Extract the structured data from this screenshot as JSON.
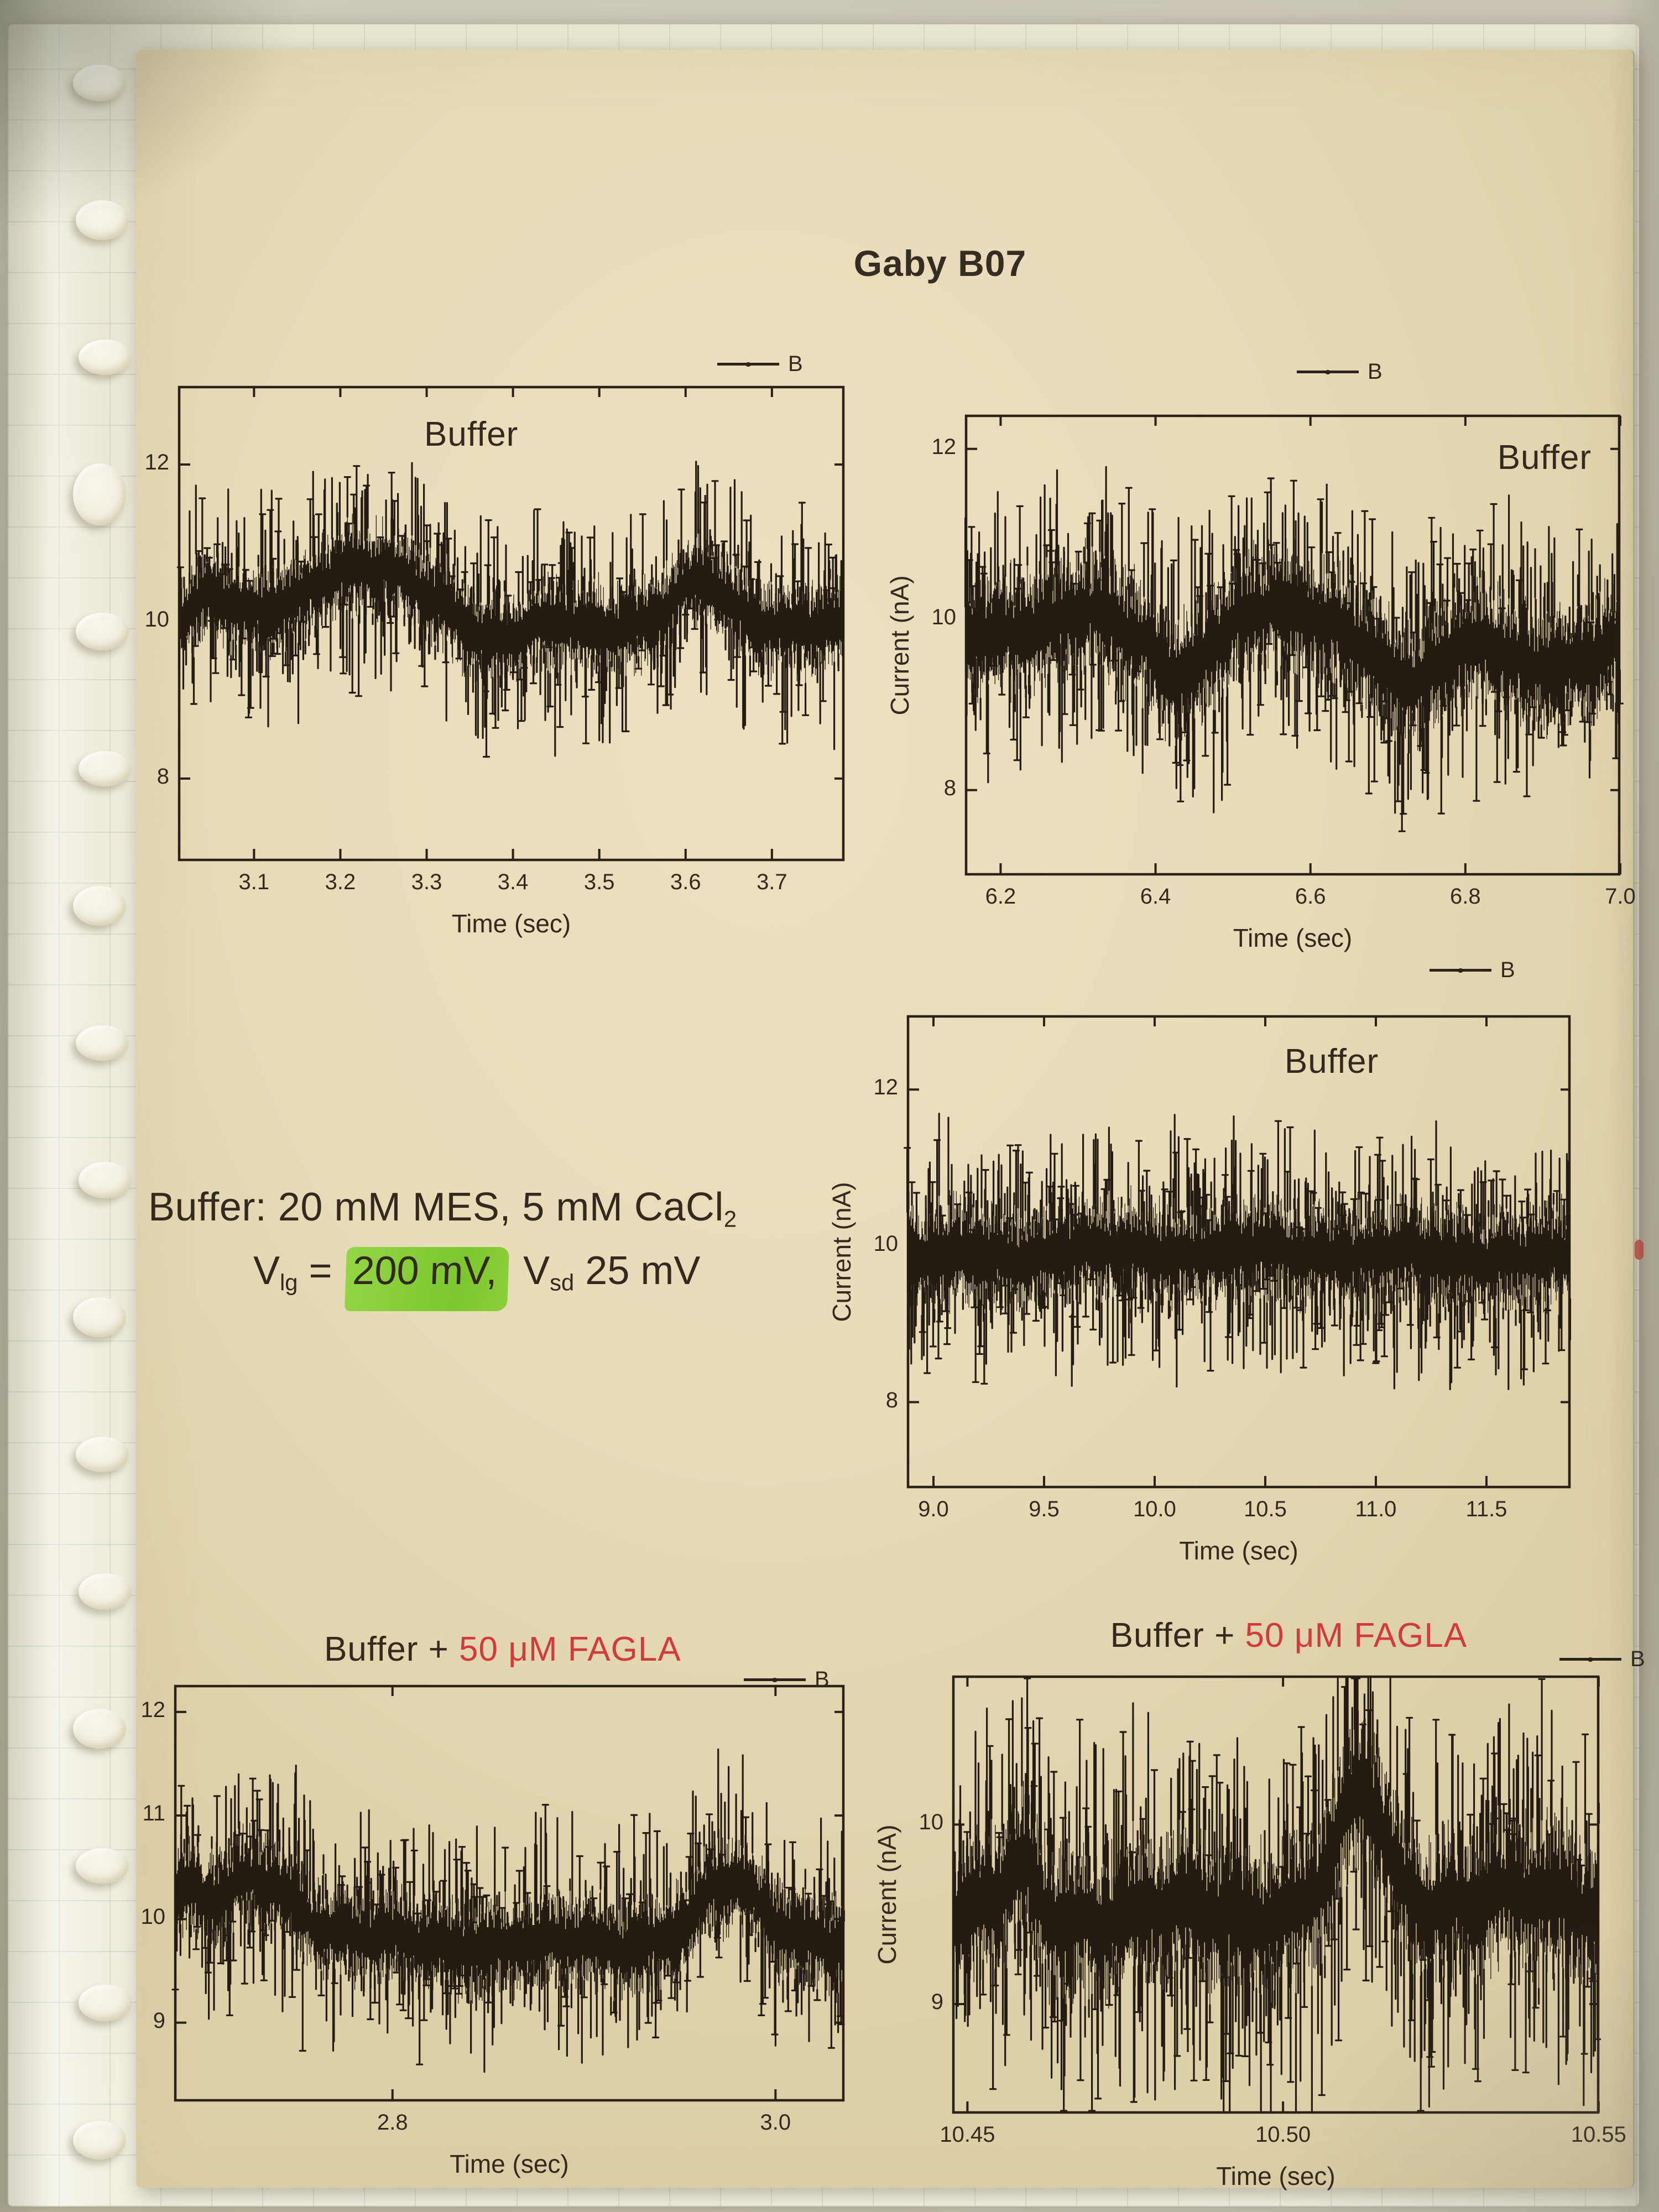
{
  "page": {
    "title": "Gaby B07"
  },
  "note": {
    "line1": "Buffer: 20 mM MES, 5 mM CaCl",
    "line1_sub": "2",
    "line2_v1": "V",
    "line2_v1_sub": "lg",
    "line2_eq": " = ",
    "line2_highlight": "200 mV,",
    "line2_v2": " V",
    "line2_v2_sub": "sd",
    "line2_tail": " 25 mV"
  },
  "chart_data": [
    {
      "type": "line",
      "title_black": "Buffer",
      "title_red": "",
      "legend": "B",
      "xlabel": "Time (sec)",
      "ylabel": "",
      "xlim": [
        3.012,
        3.784
      ],
      "ylim": [
        6.95,
        13.0
      ],
      "xticks": [
        {
          "v": 3.1,
          "label": "3.1"
        },
        {
          "v": 3.2,
          "label": "3.2"
        },
        {
          "v": 3.3,
          "label": "3.3"
        },
        {
          "v": 3.4,
          "label": "3.4"
        },
        {
          "v": 3.5,
          "label": "3.5"
        },
        {
          "v": 3.6,
          "label": "3.6"
        },
        {
          "v": 3.7,
          "label": "3.7"
        }
      ],
      "yticks": [
        {
          "v": 12,
          "label": "12"
        },
        {
          "v": 10,
          "label": "10"
        },
        {
          "v": 8,
          "label": "8"
        }
      ],
      "trace": {
        "baseline": 9.95,
        "band": 0.5,
        "spike": 1.0,
        "spike_prob": 0.55,
        "n": 950,
        "seed": 11,
        "bumps": [
          {
            "c": 3.225,
            "w": 0.1,
            "a": 0.72
          },
          {
            "c": 3.615,
            "w": 0.045,
            "a": 0.5
          },
          {
            "c": 3.38,
            "w": 0.04,
            "a": -0.25
          },
          {
            "c": 3.05,
            "w": 0.03,
            "a": 0.3
          }
        ]
      }
    },
    {
      "type": "line",
      "title_black": "Buffer",
      "title_red": "",
      "legend": "B",
      "xlabel": "Time (sec)",
      "ylabel": "Current (nA)",
      "xlim": [
        6.154,
        7.0
      ],
      "ylim": [
        7.0,
        12.4
      ],
      "xticks": [
        {
          "v": 6.2,
          "label": "6.2"
        },
        {
          "v": 6.4,
          "label": "6.4"
        },
        {
          "v": 6.6,
          "label": "6.6"
        },
        {
          "v": 6.8,
          "label": "6.8"
        },
        {
          "v": 7.0,
          "label": "7.0"
        }
      ],
      "yticks": [
        {
          "v": 12,
          "label": "12"
        },
        {
          "v": 10,
          "label": "10"
        },
        {
          "v": 8,
          "label": "8"
        }
      ],
      "trace": {
        "baseline": 9.8,
        "band": 0.62,
        "spike": 1.1,
        "spike_prob": 0.6,
        "n": 950,
        "seed": 22,
        "bumps": [
          {
            "c": 6.31,
            "w": 0.05,
            "a": 0.35
          },
          {
            "c": 6.43,
            "w": 0.04,
            "a": -0.55
          },
          {
            "c": 6.55,
            "w": 0.06,
            "a": 0.4
          },
          {
            "c": 6.73,
            "w": 0.05,
            "a": -0.5
          },
          {
            "c": 6.9,
            "w": 0.08,
            "a": -0.35
          }
        ]
      }
    },
    {
      "type": "line",
      "title_black": "Buffer",
      "title_red": "",
      "legend": "B",
      "xlabel": "Time (sec)",
      "ylabel": "Current (nA)",
      "xlim": [
        8.88,
        11.88
      ],
      "ylim": [
        6.9,
        12.95
      ],
      "xticks": [
        {
          "v": 9.0,
          "label": "9.0"
        },
        {
          "v": 9.5,
          "label": "9.5"
        },
        {
          "v": 10.0,
          "label": "10.0"
        },
        {
          "v": 10.5,
          "label": "10.5"
        },
        {
          "v": 11.0,
          "label": "11.0"
        },
        {
          "v": 11.5,
          "label": "11.5"
        }
      ],
      "yticks": [
        {
          "v": 12,
          "label": "12"
        },
        {
          "v": 10,
          "label": "10"
        },
        {
          "v": 8,
          "label": "8"
        }
      ],
      "trace": {
        "baseline": 9.85,
        "band": 0.58,
        "spike": 1.0,
        "spike_prob": 0.6,
        "n": 1000,
        "seed": 33,
        "bumps": [
          {
            "c": 10.2,
            "w": 0.8,
            "a": 0.08
          }
        ]
      }
    },
    {
      "type": "line",
      "title_black": "Buffer + ",
      "title_red": "50 μM FAGLA",
      "legend": "B",
      "xlabel": "Time (sec)",
      "ylabel": "",
      "xlim": [
        2.686,
        3.036
      ],
      "ylim": [
        8.24,
        12.26
      ],
      "xticks": [
        {
          "v": 2.8,
          "label": "2.8"
        },
        {
          "v": 3.0,
          "label": "3.0"
        }
      ],
      "yticks": [
        {
          "v": 12,
          "label": "12"
        },
        {
          "v": 11,
          "label": "11"
        },
        {
          "v": 10,
          "label": "10"
        },
        {
          "v": 9,
          "label": "9"
        }
      ],
      "trace": {
        "baseline": 9.85,
        "band": 0.4,
        "spike": 0.8,
        "spike_prob": 0.55,
        "n": 900,
        "seed": 44,
        "bumps": [
          {
            "c": 2.73,
            "w": 0.028,
            "a": 0.55
          },
          {
            "c": 2.69,
            "w": 0.012,
            "a": 0.35
          },
          {
            "c": 2.975,
            "w": 0.022,
            "a": 0.5
          },
          {
            "c": 2.87,
            "w": 0.1,
            "a": -0.1
          }
        ]
      }
    },
    {
      "type": "line",
      "title_black": "Buffer + ",
      "title_red": "50 μM FAGLA",
      "legend": "B",
      "xlabel": "Time (sec)",
      "ylabel": "Current (nA)",
      "xlim": [
        10.4476,
        10.5501
      ],
      "ylim": [
        8.39,
        10.83
      ],
      "xticks": [
        {
          "v": 10.45,
          "label": "10.45"
        },
        {
          "v": 10.5,
          "label": "10.50"
        },
        {
          "v": 10.55,
          "label": "10.55"
        }
      ],
      "yticks": [
        {
          "v": 10,
          "label": "10"
        },
        {
          "v": 9,
          "label": "9"
        }
      ],
      "trace": {
        "baseline": 9.5,
        "band": 0.36,
        "spike": 0.7,
        "spike_prob": 0.6,
        "n": 850,
        "seed": 55,
        "bumps": [
          {
            "c": 10.5125,
            "w": 0.005,
            "a": 0.6
          },
          {
            "c": 10.5555,
            "w": 0.004,
            "a": 0.45
          },
          {
            "c": 10.458,
            "w": 0.003,
            "a": 0.25
          },
          {
            "c": 10.53,
            "w": 0.03,
            "a": 0.08
          }
        ]
      }
    }
  ]
}
